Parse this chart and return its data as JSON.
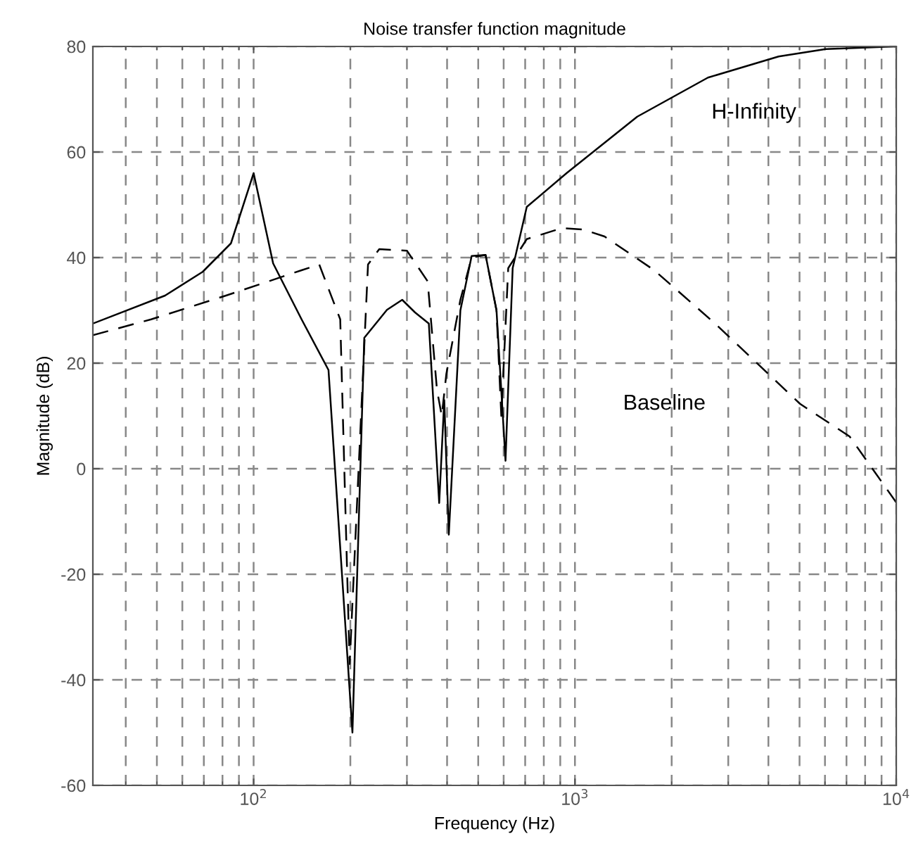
{
  "chart_data": {
    "type": "line",
    "title": "Noise transfer function magnitude",
    "xlabel": "Frequency (Hz)",
    "ylabel": "Magnitude (dB)",
    "log": "x",
    "grid": true,
    "legend": false,
    "xlim": [
      31.6,
      10000
    ],
    "xticks": [
      {
        "value": 100,
        "label": "10$^{2}$"
      },
      {
        "value": 1000,
        "label": "10$^{3}$"
      },
      {
        "value": 10000,
        "label": "10$^{4}$"
      }
    ],
    "ylim": [
      -60,
      80
    ],
    "yticks": [
      -60,
      -40,
      -20,
      0,
      20,
      40,
      60,
      80
    ],
    "series": [
      {
        "name": "H-Infinity",
        "color": "#000000",
        "line_style": "solid",
        "x": [
          31.6,
          53,
          69.4,
          85,
          100,
          115,
          141,
          171,
          203,
          221,
          260,
          290,
          318,
          351,
          378,
          392,
          405,
          440,
          477,
          527,
          570,
          608,
          640,
          708,
          942,
          1563,
          2594,
          4305,
          6030,
          10000
        ],
        "values": [
          27.5,
          32.8,
          37.3,
          42.7,
          56,
          38.9,
          28.3,
          18.7,
          -50,
          24.8,
          30.1,
          32,
          29.6,
          27.5,
          -6.5,
          13,
          -12.5,
          30,
          40.3,
          40.5,
          30,
          1.5,
          38,
          49.6,
          56,
          66.7,
          74.1,
          78.1,
          79.5,
          80
        ]
      },
      {
        "name": "Baseline",
        "color": "#000000",
        "line_style": "dashed",
        "x": [
          31.6,
          48,
          82,
          141,
          160,
          186,
          199,
          227,
          246,
          300,
          348,
          372,
          385,
          398,
          440,
          477,
          527,
          570,
          590,
          620,
          708,
          912,
          1062,
          1236,
          1765,
          2730,
          5016,
          7160,
          10000
        ],
        "values": [
          25.3,
          28.3,
          32.8,
          37.6,
          38.7,
          28.3,
          -37,
          38.7,
          41.6,
          41.3,
          35.5,
          15,
          10,
          18,
          32,
          40,
          40.5,
          30,
          10,
          38,
          43.5,
          45.6,
          45.3,
          44,
          37.6,
          27.5,
          12.3,
          6.1,
          -6.4
        ]
      }
    ]
  }
}
